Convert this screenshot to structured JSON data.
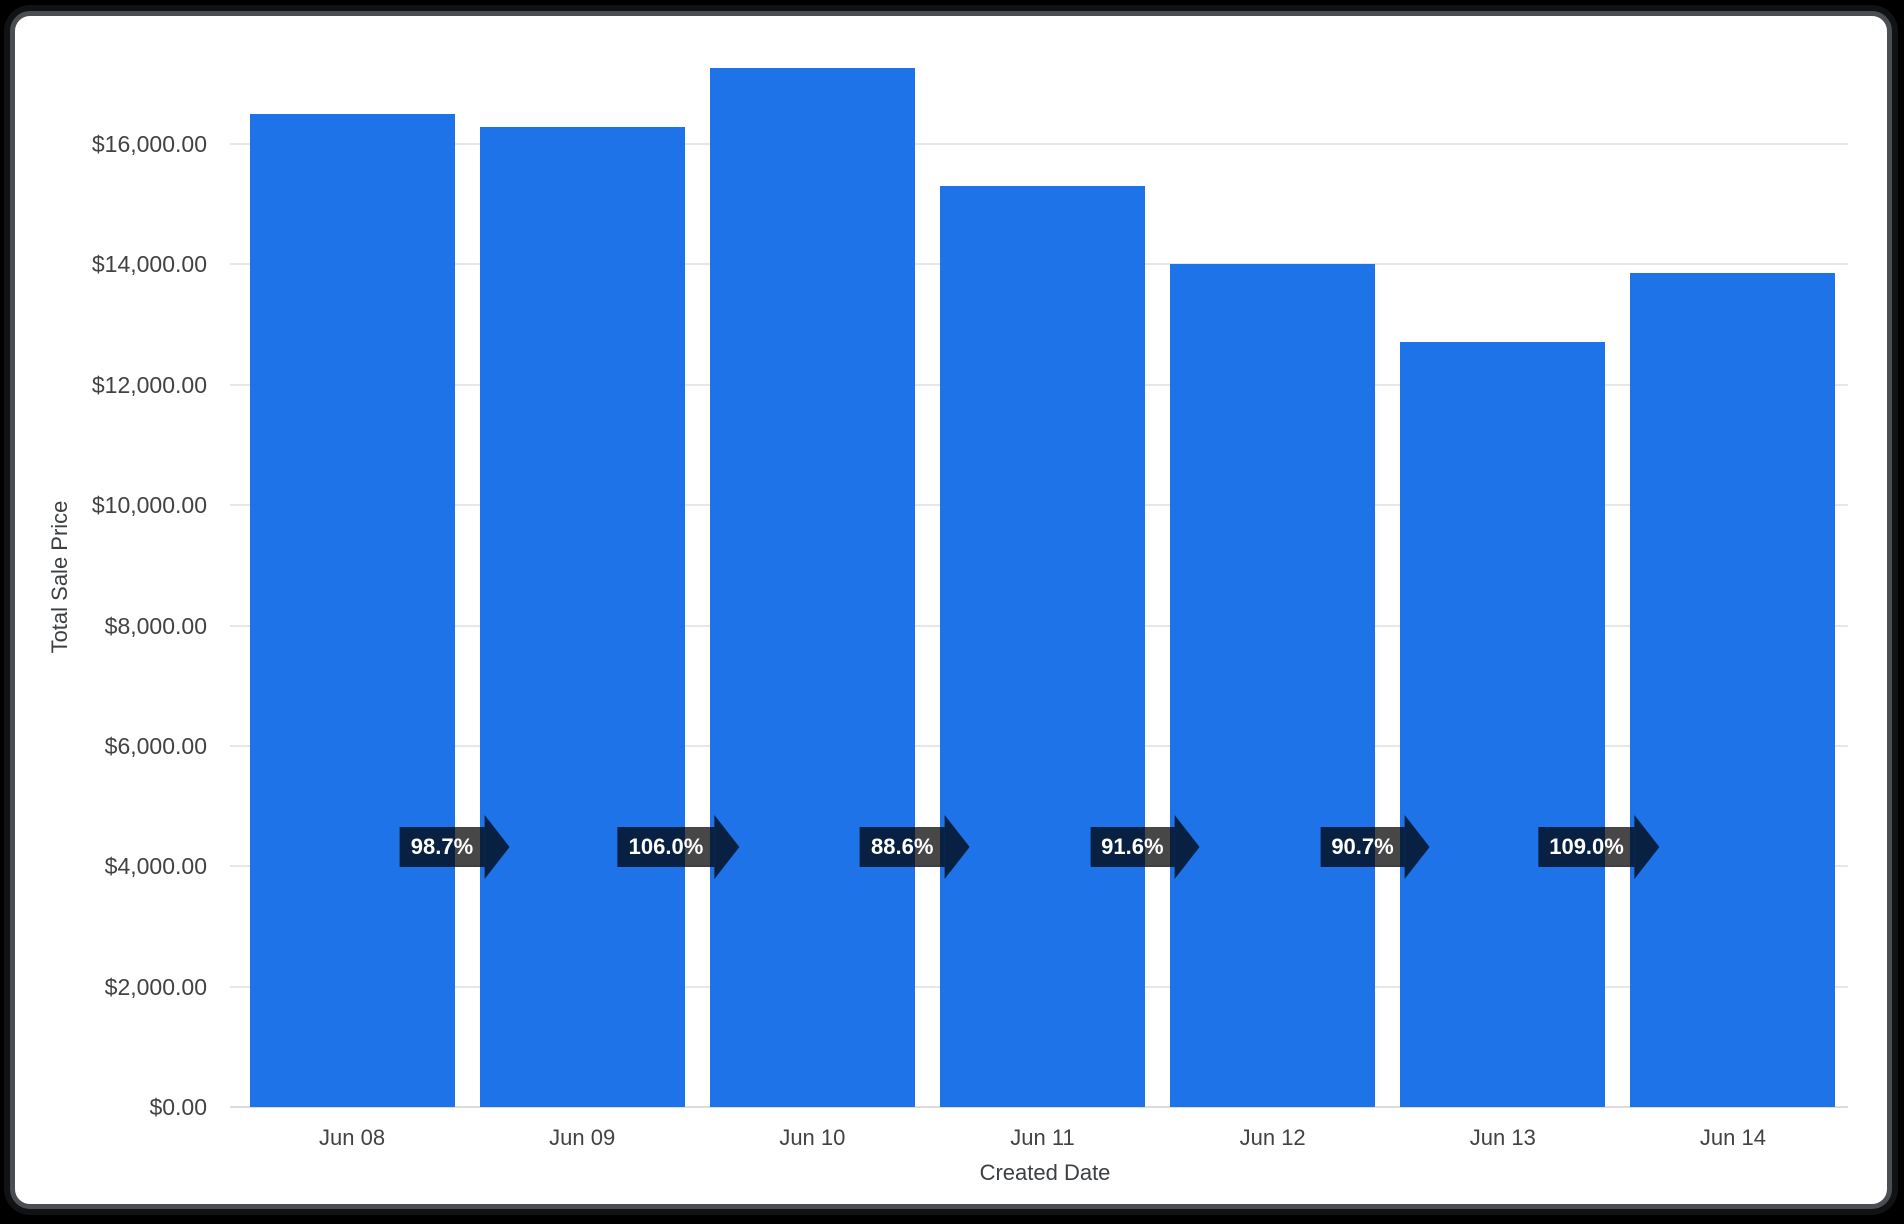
{
  "chart_data": {
    "type": "bar",
    "title": "",
    "xlabel": "Created Date",
    "ylabel": "Total Sale Price",
    "categories": [
      "Jun 08",
      "Jun 09",
      "Jun 10",
      "Jun 11",
      "Jun 12",
      "Jun 13",
      "Jun 14"
    ],
    "values": [
      16500,
      16285,
      17262,
      15294,
      14009,
      12706,
      13850
    ],
    "value_unit": "USD",
    "percent_change_labels": [
      "98.7%",
      "106.0%",
      "88.6%",
      "91.6%",
      "90.7%",
      "109.0%"
    ],
    "y_tick_values": [
      0,
      2000,
      4000,
      6000,
      8000,
      10000,
      12000,
      14000,
      16000
    ],
    "y_tick_labels": [
      "$0.00",
      "$2,000.00",
      "$4,000.00",
      "$6,000.00",
      "$8,000.00",
      "$10,000.00",
      "$12,000.00",
      "$14,000.00",
      "$16,000.00"
    ],
    "ylim": [
      0,
      17700
    ],
    "grid": true,
    "legend": "none",
    "colors": {
      "bar": "#1e73e8",
      "grid": "#e7e7e7",
      "axis_text": "#424242",
      "axis_title_text": "#3c4043",
      "badge_bg": "rgba(0,0,0,0.72)",
      "badge_text": "#ffffff",
      "plot_background": "#ffffff",
      "page_background": "#000000",
      "frame_border": "#4a4e52"
    }
  }
}
